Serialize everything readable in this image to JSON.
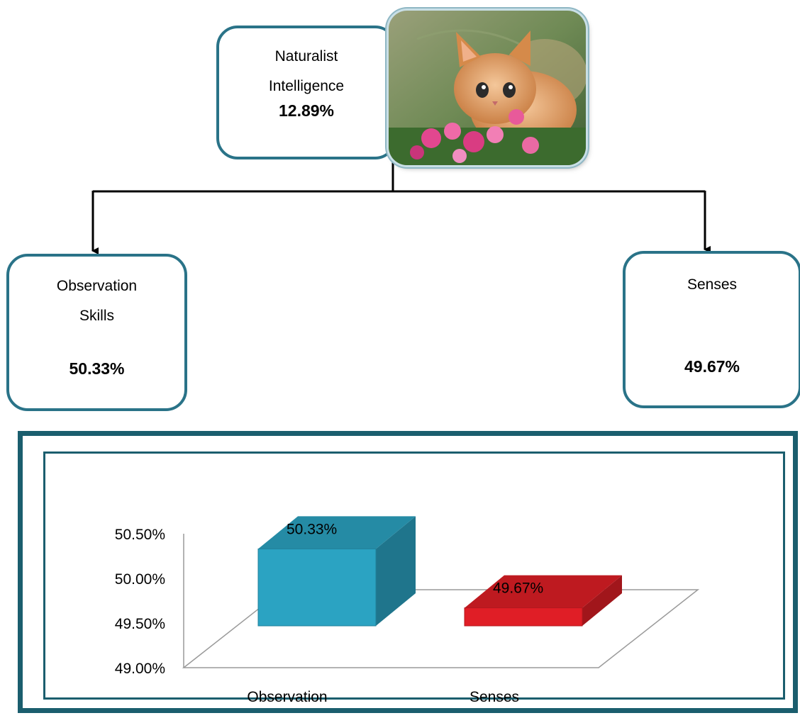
{
  "diagram": {
    "root": {
      "title": "Naturalist",
      "title_line2": "Intelligence",
      "value": "12.89%"
    },
    "children": [
      {
        "title": "Observation",
        "title_line2": "Skills",
        "value": "50.33%"
      },
      {
        "title": "Senses",
        "value": "49.67%"
      }
    ],
    "photo_icon": "kitten-photo",
    "colors": {
      "box_border": "#2a7388",
      "frame_border": "#1b5e6e"
    }
  },
  "chart_data": {
    "type": "bar",
    "categories": [
      "Observation",
      "Senses"
    ],
    "values": [
      50.33,
      49.67
    ],
    "data_labels": [
      "50.33%",
      "49.67%"
    ],
    "y_ticks": [
      "50.50%",
      "50.00%",
      "49.50%",
      "49.00%"
    ],
    "ylim": [
      49.0,
      50.5
    ],
    "colors": [
      "#2ba3c2",
      "#e01e26"
    ],
    "three_d": true,
    "grid": false,
    "legend": "none"
  }
}
